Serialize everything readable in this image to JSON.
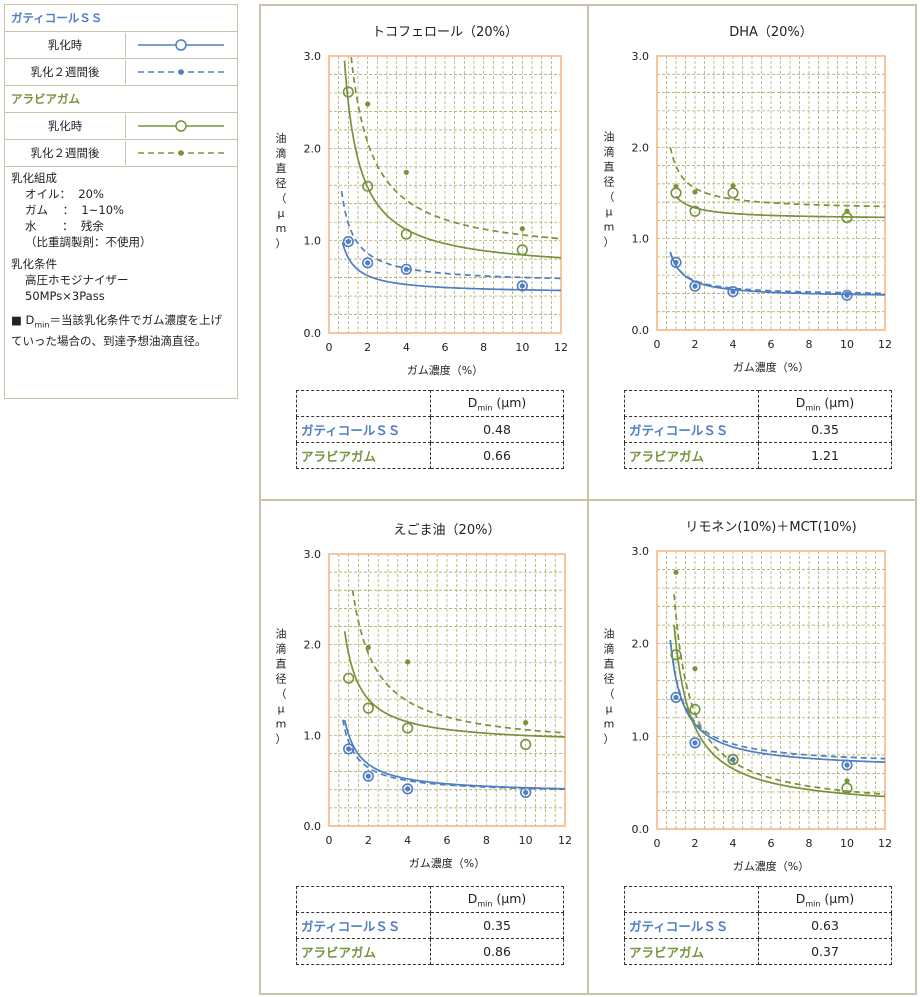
{
  "legend": {
    "ss_title": "ガティコールＳＳ",
    "ss_rows": [
      {
        "label": "乳化時"
      },
      {
        "label": "乳化２週間後"
      }
    ],
    "ga_title": "アラビアガム",
    "ga_rows": [
      {
        "label": "乳化時"
      },
      {
        "label": "乳化２週間後"
      }
    ],
    "composition_title": "乳化組成",
    "composition_lines": [
      "オイル：  20%",
      "ガム    ：  1~10%",
      "水       ：  残余",
      "（比重調製剤：不使用）"
    ],
    "conditions_title": "乳化条件",
    "conditions_lines": [
      "高圧ホモジナイザー",
      "50MPs×3Pass"
    ],
    "note_bullet": "■",
    "note_d": "D",
    "note_sub": "min",
    "note_text": "＝当該乳化条件でガム濃度を上げていった場合の、到達予想油滴直径。"
  },
  "colors": {
    "ss": "#4f7ec3",
    "ga": "#77933c",
    "grid": "#a0a050",
    "frame": "#f5b887"
  },
  "table_header_d": "D",
  "table_header_sub": "min",
  "table_header_unit": "(μm)",
  "chart_data": [
    {
      "type": "scatter",
      "title": "トコフェロール（20%）",
      "xlabel": "ガム濃度（%）",
      "ylabel": "油滴直径（μm）",
      "xlim": [
        0,
        12
      ],
      "ylim": [
        0,
        3.0
      ],
      "xticks": [
        "0",
        "2",
        "4",
        "6",
        "8",
        "10",
        "12"
      ],
      "yticks": [
        "0.0",
        "1.0",
        "2.0",
        "3.0"
      ],
      "grid": true,
      "series": [
        {
          "group": "ガティコールＳＳ",
          "key": "ss_fresh",
          "x": [
            1,
            2,
            4,
            10
          ],
          "y": [
            0.99,
            0.76,
            0.69,
            0.51
          ],
          "fit": [
            0.7,
            0.429,
            0.385
          ]
        },
        {
          "group": "ガティコールＳＳ",
          "key": "ss_2w",
          "x": [
            1,
            2,
            4,
            10
          ],
          "y": [
            0.99,
            0.76,
            0.69,
            0.51
          ],
          "fit": [
            0.65,
            0.537,
            0.65
          ]
        },
        {
          "group": "アラビアガム",
          "key": "ga_fresh",
          "x": [
            1,
            2,
            4,
            10
          ],
          "y": [
            2.61,
            1.59,
            1.07,
            0.9
          ],
          "fit": [
            0.8,
            0.663,
            1.83
          ]
        },
        {
          "group": "アラビアガム",
          "key": "ga_2w",
          "x": [
            2,
            4,
            10
          ],
          "y": [
            2.48,
            1.74,
            1.13
          ],
          "fit": [
            1.1,
            0.813,
            2.5
          ]
        }
      ],
      "table": [
        {
          "name": "ガティコールＳＳ",
          "dmin": "0.48"
        },
        {
          "name": "アラビアガム",
          "dmin": "0.66"
        }
      ]
    },
    {
      "type": "scatter",
      "title": "DHA（20%）",
      "xlabel": "ガム濃度（%）",
      "ylabel": "油滴直径（μm）",
      "xlim": [
        0,
        12
      ],
      "ylim": [
        0,
        3.0
      ],
      "xticks": [
        "0",
        "2",
        "4",
        "6",
        "8",
        "10",
        "12"
      ],
      "yticks": [
        "0.0",
        "1.0",
        "2.0",
        "3.0"
      ],
      "grid": true,
      "series": [
        {
          "group": "ガティコールＳＳ",
          "key": "ss_fresh",
          "x": [
            1,
            2,
            4,
            10
          ],
          "y": [
            0.74,
            0.48,
            0.42,
            0.38
          ],
          "fit": [
            0.7,
            0.355,
            0.35
          ]
        },
        {
          "group": "ガティコールＳＳ",
          "key": "ss_2w",
          "x": [
            1,
            2,
            4,
            10
          ],
          "y": [
            0.74,
            0.48,
            0.42,
            0.38
          ],
          "fit": [
            0.7,
            0.375,
            0.33
          ]
        },
        {
          "group": "アラビアガム",
          "key": "ga_fresh",
          "x": [
            1,
            2,
            4,
            10
          ],
          "y": [
            1.5,
            1.3,
            1.5,
            1.23
          ],
          "fit": [
            1.0,
            1.213,
            0.25
          ]
        },
        {
          "group": "アラビアガム",
          "key": "ga_2w",
          "x": [
            1,
            2,
            4,
            10
          ],
          "y": [
            1.57,
            1.51,
            1.58,
            1.3
          ],
          "fit": [
            0.7,
            1.313,
            0.48
          ]
        }
      ],
      "table": [
        {
          "name": "ガティコールＳＳ",
          "dmin": "0.35"
        },
        {
          "name": "アラビアガム",
          "dmin": "1.21"
        }
      ]
    },
    {
      "type": "scatter",
      "title": "えごま油（20%）",
      "xlabel": "ガム濃度（%）",
      "ylabel": "油滴直径（μm）",
      "xlim": [
        0,
        12
      ],
      "ylim": [
        0,
        3.0
      ],
      "xticks": [
        "0",
        "2",
        "4",
        "6",
        "8",
        "10",
        "12"
      ],
      "yticks": [
        "0.0",
        "1.0",
        "2.0",
        "3.0"
      ],
      "grid": true,
      "series": [
        {
          "group": "ガティコールＳＳ",
          "key": "ss_fresh",
          "x": [
            1,
            2,
            4,
            10
          ],
          "y": [
            0.85,
            0.55,
            0.41,
            0.37
          ],
          "fit": [
            0.8,
            0.357,
            0.65
          ]
        },
        {
          "group": "ガティコールＳＳ",
          "key": "ss_2w",
          "x": [
            1,
            2,
            4,
            10
          ],
          "y": [
            0.85,
            0.55,
            0.41,
            0.37
          ],
          "fit": [
            0.7,
            0.358,
            0.57
          ]
        },
        {
          "group": "アラビアガム",
          "key": "ga_fresh",
          "x": [
            1,
            2,
            4,
            10
          ],
          "y": [
            1.63,
            1.3,
            1.08,
            0.9
          ],
          "fit": [
            0.8,
            0.898,
            1.0
          ]
        },
        {
          "group": "アラビアガム",
          "key": "ga_2w",
          "x": [
            2,
            4,
            10
          ],
          "y": [
            1.97,
            1.81,
            1.14
          ],
          "fit": [
            1.2,
            0.852,
            2.1
          ]
        }
      ],
      "table": [
        {
          "name": "ガティコールＳＳ",
          "dmin": "0.35"
        },
        {
          "name": "アラビアガム",
          "dmin": "0.86"
        }
      ]
    },
    {
      "type": "scatter",
      "title": "リモネン(10%)＋MCT(10%)",
      "xlabel": "ガム濃度（%）",
      "ylabel": "油滴直径（μm）",
      "xlim": [
        0,
        12
      ],
      "ylim": [
        0,
        3.0
      ],
      "xticks": [
        "0",
        "2",
        "4",
        "6",
        "8",
        "10",
        "12"
      ],
      "yticks": [
        "0.0",
        "1.0",
        "2.0",
        "3.0"
      ],
      "grid": true,
      "series": [
        {
          "group": "ガティコールＳＳ",
          "key": "ss_fresh",
          "x": [
            1,
            2,
            4,
            10
          ],
          "y": [
            1.42,
            0.93,
            0.75,
            0.69
          ],
          "fit": [
            0.7,
            0.64,
            0.98
          ]
        },
        {
          "group": "ガティコールＳＳ",
          "key": "ss_2w",
          "x": [
            1,
            2,
            4,
            10
          ],
          "y": [
            1.42,
            0.93,
            0.75,
            0.69
          ],
          "fit": [
            0.7,
            0.68,
            0.95
          ]
        },
        {
          "group": "アラビアガム",
          "key": "ga_fresh",
          "x": [
            1,
            2,
            4,
            10
          ],
          "y": [
            1.88,
            1.29,
            0.75,
            0.44
          ],
          "fit": [
            0.9,
            0.2,
            1.8
          ]
        },
        {
          "group": "アラビアガム",
          "key": "ga_2w",
          "x": [
            1,
            2,
            10
          ],
          "y": [
            2.77,
            1.73,
            0.52
          ],
          "fit": [
            0.9,
            0.2,
            2.1
          ]
        }
      ],
      "table": [
        {
          "name": "ガティコールＳＳ",
          "dmin": "0.63"
        },
        {
          "name": "アラビアガム",
          "dmin": "0.37"
        }
      ]
    }
  ]
}
